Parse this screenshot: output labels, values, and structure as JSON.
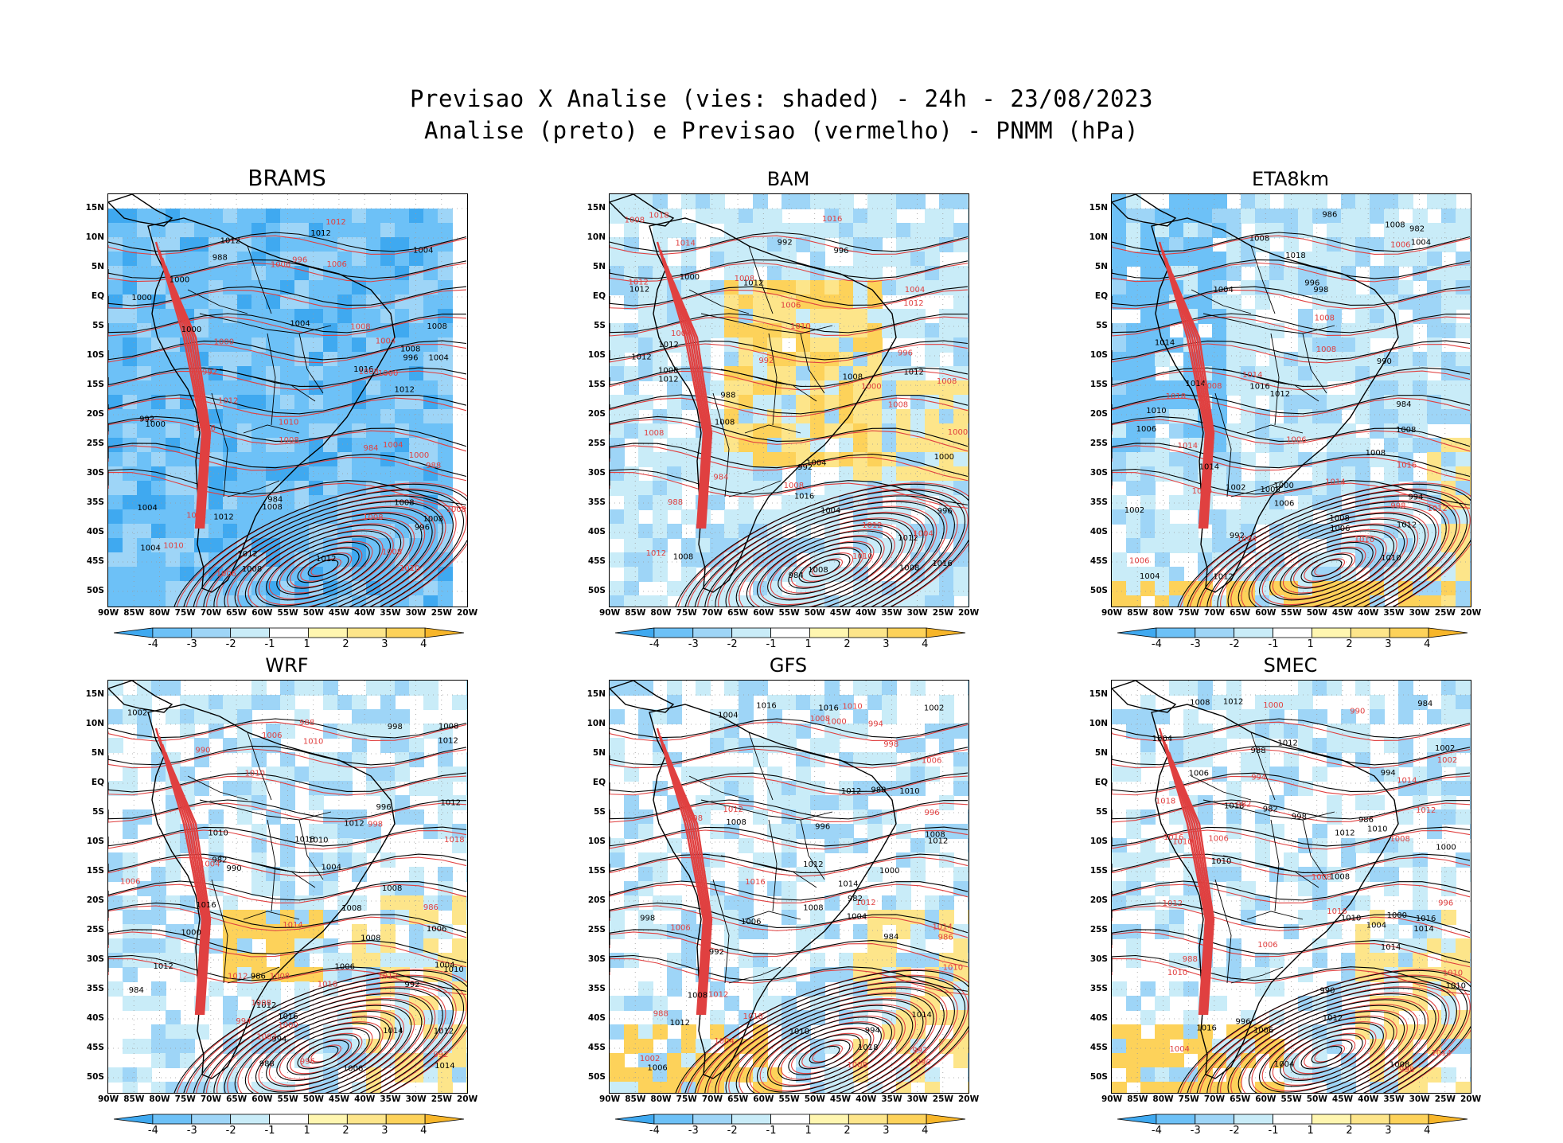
{
  "title": {
    "line1": "Previsao X Analise (vies: shaded) - 24h - 23/08/2023",
    "line2": "Analise (preto) e Previsao (vermelho) - PNMM (hPa)"
  },
  "lat_labels": [
    "15N",
    "10N",
    "5N",
    "EQ",
    "5S",
    "10S",
    "15S",
    "20S",
    "25S",
    "30S",
    "35S",
    "40S",
    "45S",
    "50S"
  ],
  "lon_labels": [
    "90W",
    "85W",
    "80W",
    "75W",
    "70W",
    "65W",
    "60W",
    "55W",
    "50W",
    "45W",
    "40W",
    "35W",
    "30W",
    "25W",
    "20W"
  ],
  "colorbar": {
    "ticks": [
      "-4",
      "-3",
      "-2",
      "-1",
      "1",
      "2",
      "3",
      "4"
    ],
    "colors": [
      "#3fa9f0",
      "#6dc1f7",
      "#9ed5f7",
      "#c9ecf8",
      "#ffffff",
      "#fff6b0",
      "#fde58a",
      "#fdd25a",
      "#f7b62a"
    ]
  },
  "colors": {
    "analysis": "#000000",
    "forecast": "#e04040"
  },
  "panels": [
    {
      "name": "BRAMS",
      "bias": "cold",
      "labels_black": [
        "1008",
        "1008",
        "1008",
        "1004",
        "1004",
        "1012",
        "1008",
        "1012",
        "1004",
        "1000",
        "1004",
        "1000",
        "1012",
        "1008",
        "1004",
        "1000",
        "996",
        "988",
        "984",
        "996",
        "992",
        "1000",
        "1012",
        "1016",
        "1012",
        "1008",
        "1012"
      ],
      "labels_red": [
        "1006",
        "1008",
        "1008",
        "1006",
        "1008",
        "1006",
        "1010",
        "1000",
        "1008",
        "1008",
        "1006",
        "1010",
        "1012",
        "1004",
        "1000",
        "996",
        "992",
        "988",
        "984",
        "1010",
        "1012",
        "1000",
        "1004",
        "1002",
        "1008"
      ]
    },
    {
      "name": "BAM",
      "bias": "warm",
      "labels_black": [
        "1008",
        "1008",
        "1012",
        "1008",
        "1012",
        "1008",
        "1004",
        "1000",
        "1008",
        "1012",
        "1004",
        "1000",
        "996",
        "992",
        "988",
        "984",
        "1012",
        "1016",
        "1012",
        "1008",
        "996",
        "992",
        "1012",
        "1016",
        "1012"
      ],
      "labels_red": [
        "1008",
        "1008",
        "1012",
        "1008",
        "1004",
        "1008",
        "1006",
        "1010",
        "1004",
        "1000",
        "1012",
        "1016",
        "1018",
        "1012",
        "1008",
        "1004",
        "1000",
        "996",
        "992",
        "988",
        "984",
        "1012",
        "1008",
        "1010",
        "1014"
      ]
    },
    {
      "name": "ETA8km",
      "bias": "mixed-cold",
      "labels_black": [
        "1008",
        "1008",
        "1008",
        "1008",
        "1006",
        "1012",
        "1012",
        "1010",
        "1008",
        "1006",
        "1004",
        "1004",
        "1000",
        "998",
        "996",
        "994",
        "992",
        "990",
        "986",
        "984",
        "982",
        "1002",
        "1012",
        "1014",
        "1016",
        "1018",
        "1004",
        "1014",
        "1002",
        "1010",
        "1006",
        "1014",
        "1008"
      ],
      "labels_red": [
        "1006",
        "1008",
        "1008",
        "1006",
        "1010",
        "1014",
        "1016",
        "1012",
        "1010",
        "1014",
        "1008",
        "1004",
        "998",
        "1006",
        "1014",
        "1018"
      ]
    },
    {
      "name": "WRF",
      "bias": "mixed-warm",
      "labels_black": [
        "1006",
        "1008",
        "1008",
        "1010",
        "1012",
        "1012",
        "1012",
        "1012",
        "1008",
        "1004",
        "1006",
        "1008",
        "1010",
        "1012",
        "1014",
        "1016",
        "1018",
        "1002",
        "1000",
        "998",
        "996",
        "994",
        "992",
        "988",
        "986",
        "984",
        "982",
        "990",
        "1004",
        "1006",
        "1010",
        "1012",
        "1014",
        "1016"
      ],
      "labels_red": [
        "1006",
        "1008",
        "1010",
        "1012",
        "1014",
        "1016",
        "1018",
        "1002",
        "1000",
        "998",
        "996",
        "994",
        "992",
        "990",
        "988",
        "986",
        "1012",
        "1008",
        "1006",
        "1010",
        "1004"
      ]
    },
    {
      "name": "GFS",
      "bias": "mixed",
      "labels_black": [
        "1008",
        "1008",
        "1012",
        "1012",
        "1008",
        "1006",
        "1004",
        "1010",
        "1012",
        "1014",
        "1016",
        "1018",
        "1006",
        "1000",
        "998",
        "996",
        "994",
        "992",
        "988",
        "984",
        "982",
        "1002",
        "1004",
        "1014",
        "1016",
        "1012",
        "1010",
        "1008"
      ],
      "labels_red": [
        "1006",
        "1008",
        "1008",
        "1012",
        "1008",
        "1006",
        "1004",
        "1010",
        "1012",
        "1014",
        "1016",
        "1018",
        "1002",
        "1000",
        "998",
        "996",
        "994",
        "992",
        "990",
        "988",
        "986",
        "1012",
        "1010"
      ]
    },
    {
      "name": "SMEC",
      "bias": "mixed",
      "labels_black": [
        "1008",
        "1010",
        "1012",
        "1012",
        "1010",
        "1008",
        "1006",
        "1004",
        "1006",
        "1008",
        "1010",
        "1012",
        "1014",
        "1016",
        "1018",
        "1002",
        "1000",
        "998",
        "996",
        "994",
        "990",
        "988",
        "986",
        "984",
        "982",
        "1004",
        "1010",
        "1014",
        "1016",
        "1012",
        "1000",
        "1004"
      ],
      "labels_red": [
        "1006",
        "1008",
        "1010",
        "1012",
        "1010",
        "1008",
        "1006",
        "1004",
        "1012",
        "1014",
        "1016",
        "1018",
        "1002",
        "1000",
        "998",
        "996",
        "994",
        "990",
        "988",
        "982",
        "1010",
        "1014",
        "1016"
      ]
    }
  ]
}
